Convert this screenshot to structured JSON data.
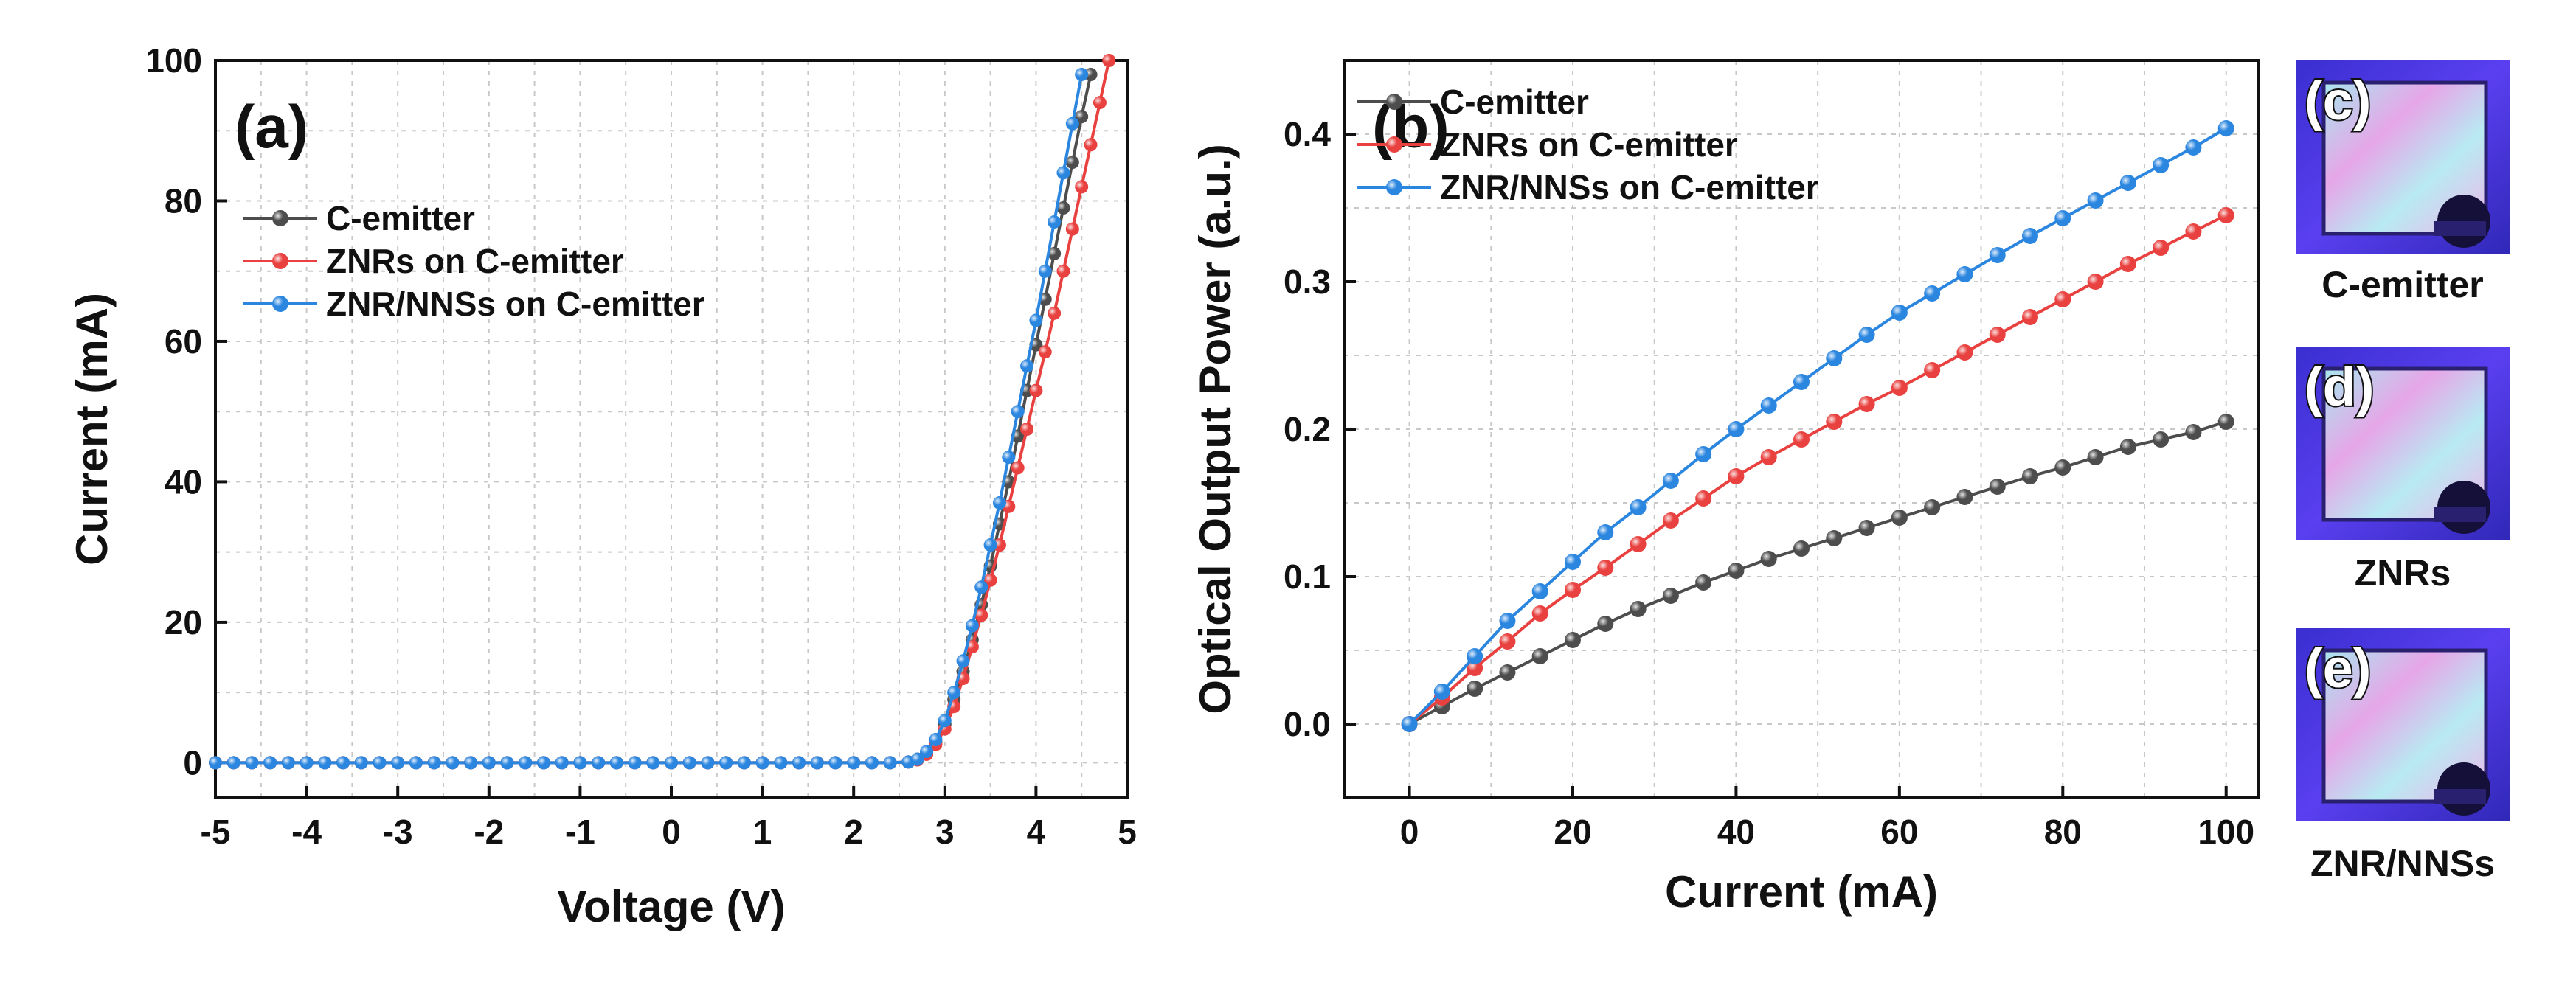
{
  "chart_data": [
    {
      "panel": "(a)",
      "type": "line",
      "xlabel": "Voltage (V)",
      "ylabel": "Current (mA)",
      "xlim": [
        -5,
        5
      ],
      "ylim": [
        -5,
        100
      ],
      "xticks": [
        -5,
        -4,
        -3,
        -2,
        -1,
        0,
        1,
        2,
        3,
        4,
        5
      ],
      "yticks": [
        0,
        20,
        40,
        60,
        80,
        100
      ],
      "grid": true,
      "legend_position": "upper-left",
      "series": [
        {
          "name": "C-emitter",
          "color": "#4d4d4d",
          "marker": "circle",
          "x": [
            -5,
            -4.8,
            -4.6,
            -4.4,
            -4.2,
            -4,
            -3.8,
            -3.6,
            -3.4,
            -3.2,
            -3,
            -2.8,
            -2.6,
            -2.4,
            -2.2,
            -2,
            -1.8,
            -1.6,
            -1.4,
            -1.2,
            -1,
            -0.8,
            -0.6,
            -0.4,
            -0.2,
            0,
            0.2,
            0.4,
            0.6,
            0.8,
            1,
            1.2,
            1.4,
            1.6,
            1.8,
            2,
            2.2,
            2.4,
            2.6,
            2.7,
            2.8,
            2.9,
            3,
            3.1,
            3.2,
            3.3,
            3.4,
            3.5,
            3.6,
            3.7,
            3.8,
            3.9,
            4,
            4.1,
            4.2,
            4.3,
            4.4,
            4.5,
            4.6
          ],
          "y": [
            0,
            0,
            0,
            0,
            0,
            0,
            0,
            0,
            0,
            0,
            0,
            0,
            0,
            0,
            0,
            0,
            0,
            0,
            0,
            0,
            0,
            0,
            0,
            0,
            0,
            0,
            0,
            0,
            0,
            0,
            0,
            0,
            0,
            0,
            0,
            0,
            0,
            0,
            0.1,
            0.5,
            1.5,
            3,
            5.5,
            9,
            13,
            17.5,
            22.5,
            28,
            34,
            40,
            46.5,
            53,
            59.5,
            66,
            72.5,
            79,
            85.5,
            92,
            98
          ]
        },
        {
          "name": "ZNRs on C-emitter",
          "color": "#e8413f",
          "marker": "circle",
          "x": [
            -5,
            -4.8,
            -4.6,
            -4.4,
            -4.2,
            -4,
            -3.8,
            -3.6,
            -3.4,
            -3.2,
            -3,
            -2.8,
            -2.6,
            -2.4,
            -2.2,
            -2,
            -1.8,
            -1.6,
            -1.4,
            -1.2,
            -1,
            -0.8,
            -0.6,
            -0.4,
            -0.2,
            0,
            0.2,
            0.4,
            0.6,
            0.8,
            1,
            1.2,
            1.4,
            1.6,
            1.8,
            2,
            2.2,
            2.4,
            2.6,
            2.7,
            2.8,
            2.9,
            3,
            3.1,
            3.2,
            3.3,
            3.4,
            3.5,
            3.6,
            3.7,
            3.8,
            3.9,
            4,
            4.1,
            4.2,
            4.3,
            4.4,
            4.5,
            4.6,
            4.7,
            4.8
          ],
          "y": [
            0,
            0,
            0,
            0,
            0,
            0,
            0,
            0,
            0,
            0,
            0,
            0,
            0,
            0,
            0,
            0,
            0,
            0,
            0,
            0,
            0,
            0,
            0,
            0,
            0,
            0,
            0,
            0,
            0,
            0,
            0,
            0,
            0,
            0,
            0,
            0,
            0,
            0,
            0.1,
            0.4,
            1.2,
            2.6,
            4.8,
            8,
            12,
            16.5,
            21,
            26,
            31,
            36.5,
            42,
            47.5,
            53,
            58.5,
            64,
            70,
            76,
            82,
            88,
            94,
            100
          ]
        },
        {
          "name": "ZNR/NNSs on C-emitter",
          "color": "#2b86e0",
          "marker": "circle",
          "x": [
            -5,
            -4.8,
            -4.6,
            -4.4,
            -4.2,
            -4,
            -3.8,
            -3.6,
            -3.4,
            -3.2,
            -3,
            -2.8,
            -2.6,
            -2.4,
            -2.2,
            -2,
            -1.8,
            -1.6,
            -1.4,
            -1.2,
            -1,
            -0.8,
            -0.6,
            -0.4,
            -0.2,
            0,
            0.2,
            0.4,
            0.6,
            0.8,
            1,
            1.2,
            1.4,
            1.6,
            1.8,
            2,
            2.2,
            2.4,
            2.6,
            2.7,
            2.8,
            2.9,
            3,
            3.1,
            3.2,
            3.3,
            3.4,
            3.5,
            3.6,
            3.7,
            3.8,
            3.9,
            4,
            4.1,
            4.2,
            4.3,
            4.4,
            4.5
          ],
          "y": [
            0,
            0,
            0,
            0,
            0,
            0,
            0,
            0,
            0,
            0,
            0,
            0,
            0,
            0,
            0,
            0,
            0,
            0,
            0,
            0,
            0,
            0,
            0,
            0,
            0,
            0,
            0,
            0,
            0,
            0,
            0,
            0,
            0,
            0,
            0,
            0,
            0,
            0,
            0.1,
            0.5,
            1.6,
            3.3,
            6,
            10,
            14.5,
            19.5,
            25,
            31,
            37,
            43.5,
            50,
            56.5,
            63,
            70,
            77,
            84,
            91,
            98
          ]
        }
      ]
    },
    {
      "panel": "(b)",
      "type": "line",
      "xlabel": "Current (mA)",
      "ylabel": "Optical Output Power (a.u.)",
      "xlim": [
        -8,
        104
      ],
      "ylim": [
        -0.05,
        0.45
      ],
      "xticks": [
        0,
        20,
        40,
        60,
        80,
        100
      ],
      "yticks": [
        0.0,
        0.1,
        0.2,
        0.3,
        0.4
      ],
      "ytick_labels": [
        "0.0",
        "0.1",
        "0.2",
        "0.3",
        "0.4"
      ],
      "grid": true,
      "legend_position": "upper-left",
      "series": [
        {
          "name": "C-emitter",
          "color": "#4d4d4d",
          "marker": "circle",
          "x": [
            0,
            4,
            8,
            12,
            16,
            20,
            24,
            28,
            32,
            36,
            40,
            44,
            48,
            52,
            56,
            60,
            64,
            68,
            72,
            76,
            80,
            84,
            88,
            92,
            96,
            100
          ],
          "y": [
            0,
            0.012,
            0.024,
            0.035,
            0.046,
            0.057,
            0.068,
            0.078,
            0.087,
            0.096,
            0.104,
            0.112,
            0.119,
            0.126,
            0.133,
            0.14,
            0.147,
            0.154,
            0.161,
            0.168,
            0.174,
            0.181,
            0.188,
            0.193,
            0.198,
            0.205
          ]
        },
        {
          "name": "ZNRs on C-emitter",
          "color": "#e8413f",
          "marker": "circle",
          "x": [
            0,
            4,
            8,
            12,
            16,
            20,
            24,
            28,
            32,
            36,
            40,
            44,
            48,
            52,
            56,
            60,
            64,
            68,
            72,
            76,
            80,
            84,
            88,
            92,
            96,
            100
          ],
          "y": [
            0,
            0.018,
            0.038,
            0.056,
            0.075,
            0.091,
            0.106,
            0.122,
            0.138,
            0.153,
            0.168,
            0.181,
            0.193,
            0.205,
            0.217,
            0.228,
            0.24,
            0.252,
            0.264,
            0.276,
            0.288,
            0.3,
            0.312,
            0.323,
            0.334,
            0.345
          ]
        },
        {
          "name": "ZNR/NNSs on C-emitter",
          "color": "#2b86e0",
          "marker": "circle",
          "x": [
            0,
            4,
            8,
            12,
            16,
            20,
            24,
            28,
            32,
            36,
            40,
            44,
            48,
            52,
            56,
            60,
            64,
            68,
            72,
            76,
            80,
            84,
            88,
            92,
            96,
            100
          ],
          "y": [
            0,
            0.022,
            0.046,
            0.07,
            0.09,
            0.11,
            0.13,
            0.147,
            0.165,
            0.183,
            0.2,
            0.216,
            0.232,
            0.248,
            0.264,
            0.279,
            0.292,
            0.305,
            0.318,
            0.331,
            0.343,
            0.355,
            0.367,
            0.379,
            0.391,
            0.404
          ]
        }
      ]
    }
  ],
  "photos": [
    {
      "label": "(c)",
      "caption": "C-emitter"
    },
    {
      "label": "(d)",
      "caption": "ZNRs"
    },
    {
      "label": "(e)",
      "caption": "ZNR/NNSs"
    }
  ]
}
